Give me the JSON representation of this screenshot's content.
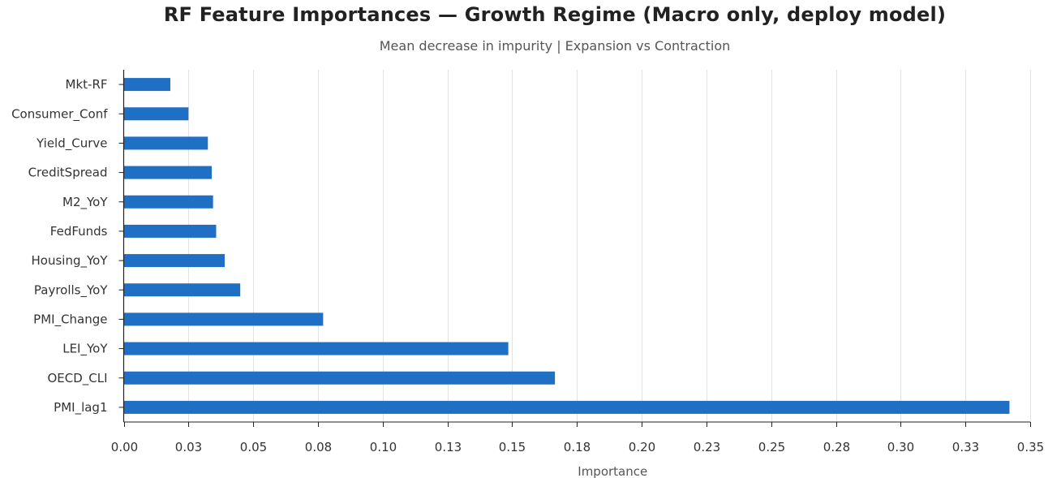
{
  "colors": {
    "bar": "#1f6fc5",
    "grid": "#e3e3e3",
    "axis": "#222222",
    "title": "#222222",
    "subtitle": "#555555"
  },
  "chart_data": {
    "type": "bar",
    "orientation": "horizontal",
    "title": "RF Feature Importances — Growth Regime (Macro only, deploy model)",
    "subtitle": "Mean decrease in impurity | Expansion vs Contraction",
    "xlabel": "Importance",
    "ylabel": "",
    "xlim": [
      0,
      0.35
    ],
    "grid": "vertical",
    "legend": "none",
    "x_ticks": [
      "0.00",
      "0.03",
      "0.05",
      "0.08",
      "0.10",
      "0.13",
      "0.15",
      "0.18",
      "0.20",
      "0.23",
      "0.25",
      "0.28",
      "0.30",
      "0.33",
      "0.35"
    ],
    "x_tick_values": [
      0,
      0.025,
      0.05,
      0.075,
      0.1,
      0.125,
      0.15,
      0.175,
      0.2,
      0.225,
      0.25,
      0.275,
      0.3,
      0.325,
      0.35
    ],
    "categories": [
      "Mkt-RF",
      "Consumer_Conf",
      "Yield_Curve",
      "CreditSpread",
      "M2_YoY",
      "FedFunds",
      "Housing_YoY",
      "Payrolls_YoY",
      "PMI_Change",
      "LEI_YoY",
      "OECD_CLI",
      "PMI_lag1"
    ],
    "values": [
      0.018,
      0.025,
      0.0325,
      0.034,
      0.0345,
      0.0357,
      0.039,
      0.045,
      0.077,
      0.1485,
      0.1665,
      0.342
    ]
  }
}
